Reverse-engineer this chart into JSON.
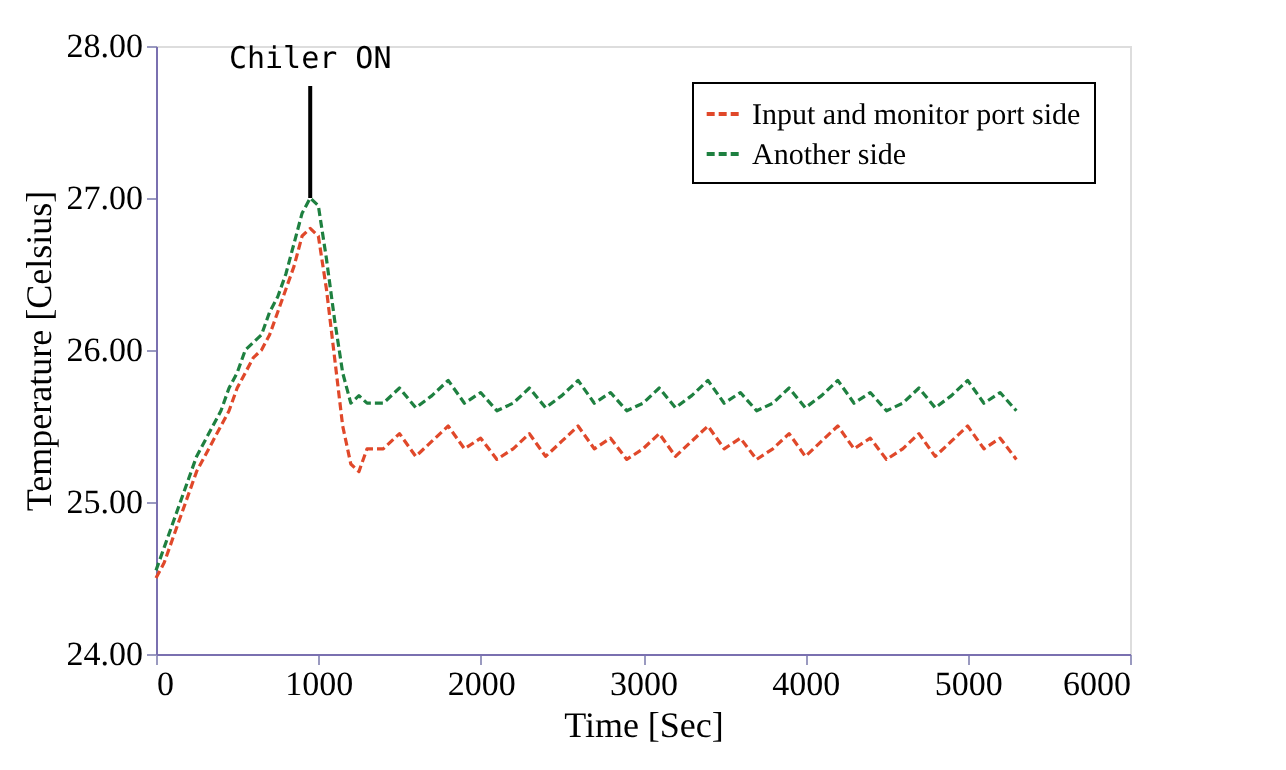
{
  "chart_data": {
    "type": "line",
    "xlabel": "Time [Sec]",
    "ylabel": "Temperature [Celsius]",
    "x": [
      0,
      50,
      100,
      150,
      200,
      250,
      300,
      350,
      400,
      450,
      500,
      550,
      600,
      650,
      700,
      750,
      800,
      850,
      900,
      950,
      1000,
      1050,
      1100,
      1150,
      1200,
      1250,
      1300,
      1400,
      1500,
      1600,
      1700,
      1800,
      1900,
      2000,
      2100,
      2200,
      2300,
      2400,
      2500,
      2600,
      2700,
      2800,
      2900,
      3000,
      3100,
      3200,
      3300,
      3400,
      3500,
      3600,
      3700,
      3800,
      3900,
      4000,
      4100,
      4200,
      4300,
      4400,
      4500,
      4600,
      4700,
      4800,
      4900,
      5000,
      5100,
      5200,
      5300
    ],
    "series": [
      {
        "name": "Input and monitor port side",
        "color": "#e0482a",
        "values": [
          24.5,
          24.6,
          24.75,
          24.9,
          25.05,
          25.2,
          25.3,
          25.4,
          25.5,
          25.6,
          25.75,
          25.85,
          25.95,
          26.0,
          26.1,
          26.25,
          26.4,
          26.55,
          26.75,
          26.8,
          26.75,
          26.4,
          25.95,
          25.5,
          25.25,
          25.2,
          25.35,
          25.35,
          25.45,
          25.3,
          25.4,
          25.5,
          25.35,
          25.42,
          25.28,
          25.35,
          25.45,
          25.3,
          25.4,
          25.5,
          25.35,
          25.42,
          25.28,
          25.35,
          25.45,
          25.3,
          25.4,
          25.5,
          25.35,
          25.42,
          25.28,
          25.35,
          25.45,
          25.3,
          25.4,
          25.5,
          25.35,
          25.42,
          25.28,
          25.35,
          25.45,
          25.3,
          25.4,
          25.5,
          25.35,
          25.42,
          25.28
        ]
      },
      {
        "name": "Another side",
        "color": "#1e8040",
        "values": [
          24.55,
          24.7,
          24.85,
          25.0,
          25.15,
          25.3,
          25.4,
          25.5,
          25.6,
          25.75,
          25.85,
          26.0,
          26.05,
          26.1,
          26.25,
          26.35,
          26.5,
          26.7,
          26.9,
          27.0,
          26.95,
          26.6,
          26.2,
          25.85,
          25.65,
          25.7,
          25.65,
          25.65,
          25.75,
          25.62,
          25.7,
          25.8,
          25.65,
          25.72,
          25.6,
          25.65,
          25.75,
          25.62,
          25.7,
          25.8,
          25.65,
          25.72,
          25.6,
          25.65,
          25.75,
          25.62,
          25.7,
          25.8,
          25.65,
          25.72,
          25.6,
          25.65,
          25.75,
          25.62,
          25.7,
          25.8,
          25.65,
          25.72,
          25.6,
          25.65,
          25.75,
          25.62,
          25.7,
          25.8,
          25.65,
          25.72,
          25.6
        ]
      }
    ],
    "annotations": [
      {
        "text": "Chiler ON",
        "x": 950,
        "y": 27.0
      }
    ],
    "xlim": [
      0,
      6000
    ],
    "xticks": [
      0,
      1000,
      2000,
      3000,
      4000,
      5000,
      6000
    ],
    "ylim": [
      24,
      28
    ],
    "yticks": [
      {
        "value": 24,
        "label": "24.00"
      },
      {
        "value": 25,
        "label": "25.00"
      },
      {
        "value": 26,
        "label": "26.00"
      },
      {
        "value": 27,
        "label": "27.00"
      },
      {
        "value": 28,
        "label": "28.00"
      }
    ],
    "grid": false,
    "legend": "top right",
    "marker": "none",
    "line_style": "dashed"
  }
}
